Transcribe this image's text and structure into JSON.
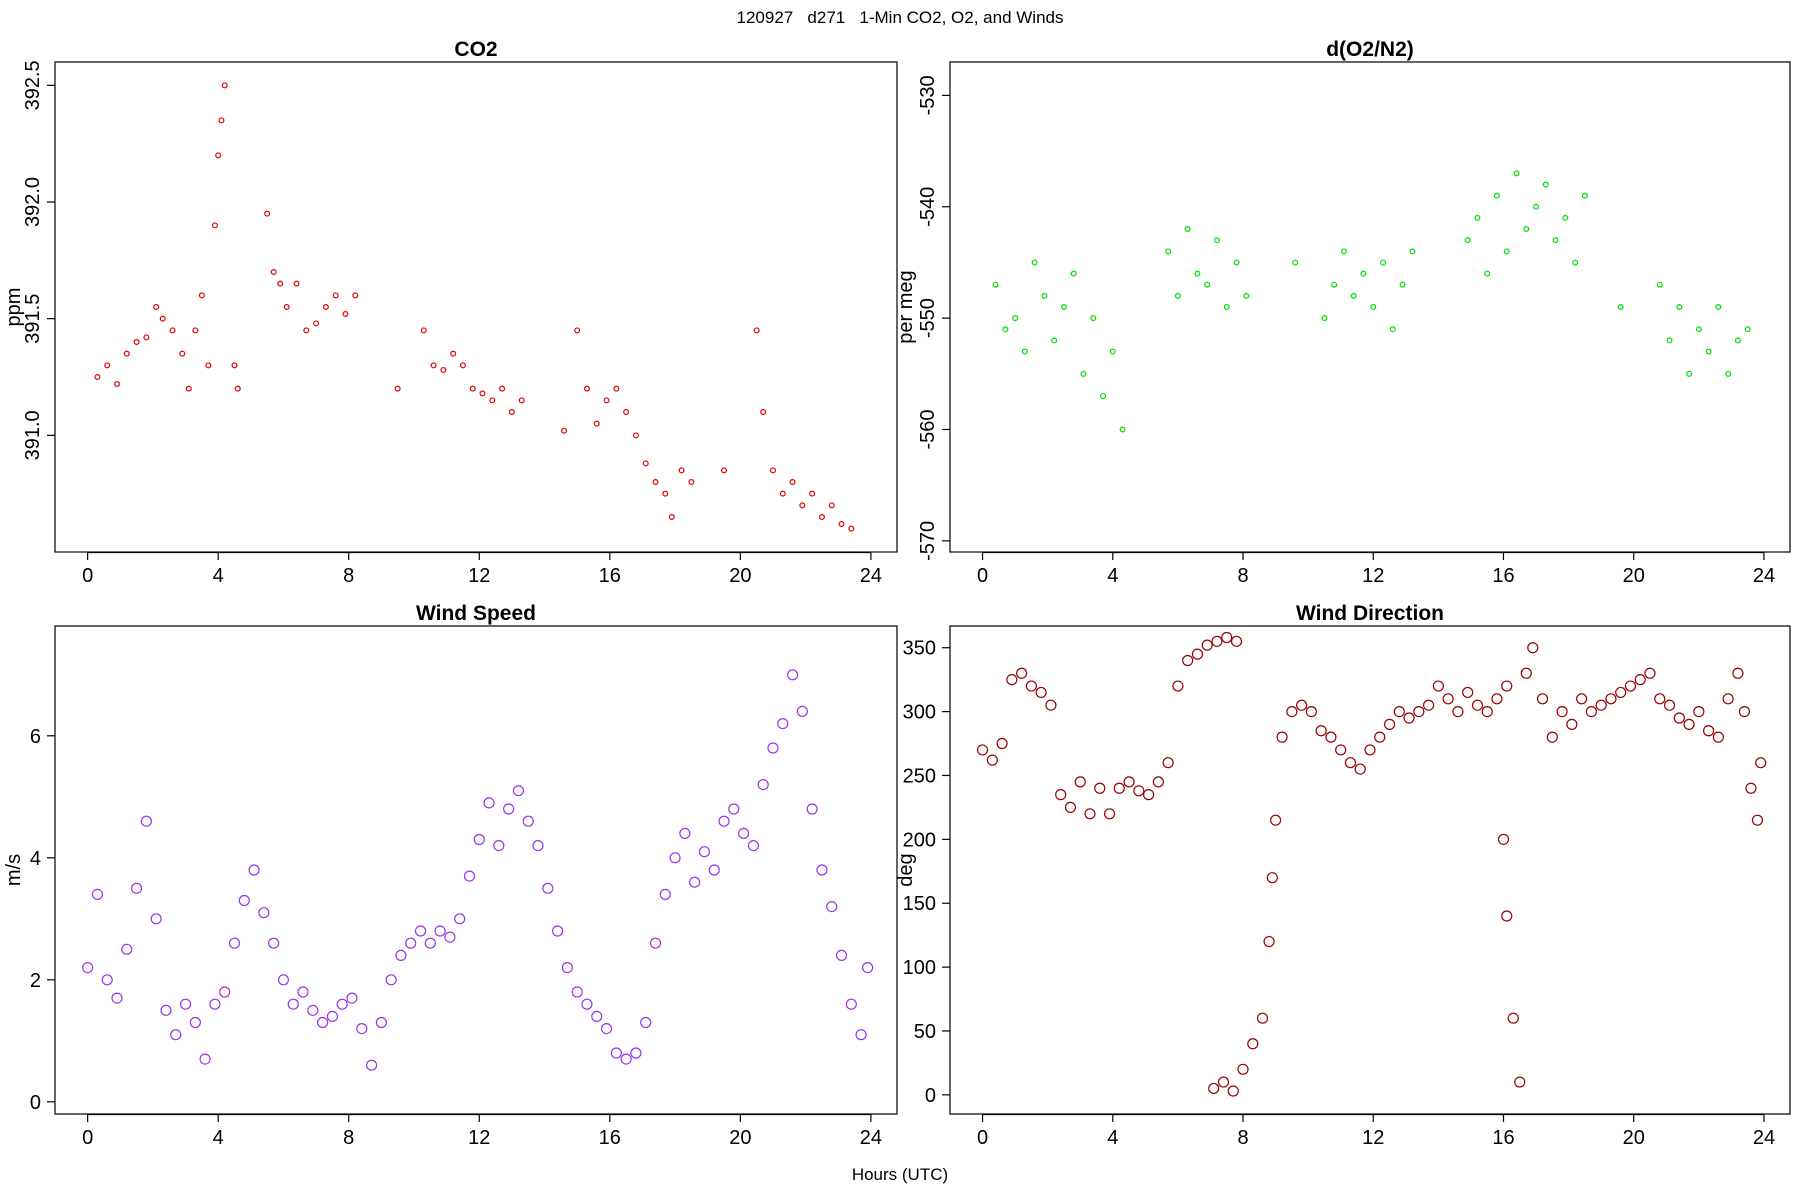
{
  "page": {
    "supertitle": "120927   d271   1-Min CO2, O2, and Winds",
    "xlabel": "Hours (UTC)"
  },
  "chart_data": [
    {
      "id": "co2",
      "type": "scatter",
      "title": "CO2",
      "xlabel": "",
      "ylabel": "ppm",
      "xlim": [
        0,
        24
      ],
      "ylim": [
        390.5,
        392.6
      ],
      "xticks": [
        "0",
        "4",
        "8",
        "12",
        "16",
        "20",
        "24"
      ],
      "yticks": [
        "391.0",
        "391.5",
        "392.0",
        "392.5"
      ],
      "color": "#dd0000",
      "marker_size": "small",
      "x": [
        0.3,
        0.6,
        0.9,
        1.2,
        1.5,
        1.8,
        2.1,
        2.3,
        2.6,
        2.9,
        3.1,
        3.3,
        3.5,
        3.7,
        3.9,
        4.0,
        4.1,
        4.2,
        4.5,
        4.6,
        5.5,
        5.7,
        5.9,
        6.1,
        6.4,
        6.7,
        7.0,
        7.3,
        7.6,
        7.9,
        8.2,
        9.5,
        10.3,
        10.6,
        10.9,
        11.2,
        11.5,
        11.8,
        12.1,
        12.4,
        12.7,
        13.0,
        13.3,
        14.6,
        15.0,
        15.3,
        15.6,
        15.9,
        16.2,
        16.5,
        16.8,
        17.1,
        17.4,
        17.7,
        17.9,
        18.2,
        18.5,
        19.5,
        20.5,
        20.7,
        21.0,
        21.3,
        21.6,
        21.9,
        22.2,
        22.5,
        22.8,
        23.1,
        23.4
      ],
      "y": [
        391.25,
        391.3,
        391.22,
        391.35,
        391.4,
        391.42,
        391.55,
        391.5,
        391.45,
        391.35,
        391.2,
        391.45,
        391.6,
        391.3,
        391.9,
        392.2,
        392.35,
        392.5,
        391.3,
        391.2,
        391.95,
        391.7,
        391.65,
        391.55,
        391.65,
        391.45,
        391.48,
        391.55,
        391.6,
        391.52,
        391.6,
        391.2,
        391.45,
        391.3,
        391.28,
        391.35,
        391.3,
        391.2,
        391.18,
        391.15,
        391.2,
        391.1,
        391.15,
        391.02,
        391.45,
        391.2,
        391.05,
        391.15,
        391.2,
        391.1,
        391.0,
        390.88,
        390.8,
        390.75,
        390.65,
        390.85,
        390.8,
        390.85,
        391.45,
        391.1,
        390.85,
        390.75,
        390.8,
        390.7,
        390.75,
        390.65,
        390.7,
        390.62,
        390.6
      ]
    },
    {
      "id": "o2",
      "type": "scatter",
      "title": "d(O2/N2)",
      "xlabel": "",
      "ylabel": "per meg",
      "xlim": [
        0,
        24
      ],
      "ylim": [
        -571,
        -527
      ],
      "xticks": [
        "0",
        "4",
        "8",
        "12",
        "16",
        "20",
        "24"
      ],
      "yticks": [
        "-530",
        "-540",
        "-550",
        "-560",
        "-570"
      ],
      "color": "#00dd00",
      "marker_size": "small",
      "x": [
        0.4,
        0.7,
        1.0,
        1.3,
        1.6,
        1.9,
        2.2,
        2.5,
        2.8,
        3.1,
        3.4,
        3.7,
        4.0,
        4.3,
        5.7,
        6.0,
        6.3,
        6.6,
        6.9,
        7.2,
        7.5,
        7.8,
        8.1,
        9.6,
        10.5,
        10.8,
        11.1,
        11.4,
        11.7,
        12.0,
        12.3,
        12.6,
        12.9,
        13.2,
        14.9,
        15.2,
        15.5,
        15.8,
        16.1,
        16.4,
        16.7,
        17.0,
        17.3,
        17.6,
        17.9,
        18.2,
        18.5,
        19.6,
        20.8,
        21.1,
        21.4,
        21.7,
        22.0,
        22.3,
        22.6,
        22.9,
        23.2,
        23.5
      ],
      "y": [
        -547,
        -551,
        -550,
        -553,
        -545,
        -548,
        -552,
        -549,
        -546,
        -555,
        -550,
        -557,
        -553,
        -560,
        -544,
        -548,
        -542,
        -546,
        -547,
        -543,
        -549,
        -545,
        -548,
        -545,
        -550,
        -547,
        -544,
        -548,
        -546,
        -549,
        -545,
        -551,
        -547,
        -544,
        -543,
        -541,
        -546,
        -539,
        -544,
        -537,
        -542,
        -540,
        -538,
        -543,
        -541,
        -545,
        -539,
        -549,
        -547,
        -552,
        -549,
        -555,
        -551,
        -553,
        -549,
        -555,
        -552,
        -551
      ]
    },
    {
      "id": "wind_speed",
      "type": "scatter",
      "title": "Wind Speed",
      "xlabel": "",
      "ylabel": "m/s",
      "xlim": [
        0,
        24
      ],
      "ylim": [
        -0.2,
        7.8
      ],
      "xticks": [
        "0",
        "4",
        "8",
        "12",
        "16",
        "20",
        "24"
      ],
      "yticks": [
        "0",
        "2",
        "4",
        "6"
      ],
      "color": "#9933ee",
      "marker_size": "large",
      "x": [
        0.0,
        0.3,
        0.6,
        0.9,
        1.2,
        1.5,
        1.8,
        2.1,
        2.4,
        2.7,
        3.0,
        3.3,
        3.6,
        3.9,
        4.2,
        4.5,
        4.8,
        5.1,
        5.4,
        5.7,
        6.0,
        6.3,
        6.6,
        6.9,
        7.2,
        7.5,
        7.8,
        8.1,
        8.4,
        8.7,
        9.0,
        9.3,
        9.6,
        9.9,
        10.2,
        10.5,
        10.8,
        11.1,
        11.4,
        11.7,
        12.0,
        12.3,
        12.6,
        12.9,
        13.2,
        13.5,
        13.8,
        14.1,
        14.4,
        14.7,
        15.0,
        15.3,
        15.6,
        15.9,
        16.2,
        16.5,
        16.8,
        17.1,
        17.4,
        17.7,
        18.0,
        18.3,
        18.6,
        18.9,
        19.2,
        19.5,
        19.8,
        20.1,
        20.4,
        20.7,
        21.0,
        21.3,
        21.6,
        21.9,
        22.2,
        22.5,
        22.8,
        23.1,
        23.4,
        23.7,
        23.9
      ],
      "y": [
        2.2,
        3.4,
        2.0,
        1.7,
        2.5,
        3.5,
        4.6,
        3.0,
        1.5,
        1.1,
        1.6,
        1.3,
        0.7,
        1.6,
        1.8,
        2.6,
        3.3,
        3.8,
        3.1,
        2.6,
        2.0,
        1.6,
        1.8,
        1.5,
        1.3,
        1.4,
        1.6,
        1.7,
        1.2,
        0.6,
        1.3,
        2.0,
        2.4,
        2.6,
        2.8,
        2.6,
        2.8,
        2.7,
        3.0,
        3.7,
        4.3,
        4.9,
        4.2,
        4.8,
        5.1,
        4.6,
        4.2,
        3.5,
        2.8,
        2.2,
        1.8,
        1.6,
        1.4,
        1.2,
        0.8,
        0.7,
        0.8,
        1.3,
        2.6,
        3.4,
        4.0,
        4.4,
        3.6,
        4.1,
        3.8,
        4.6,
        4.8,
        4.4,
        4.2,
        5.2,
        5.8,
        6.2,
        7.0,
        6.4,
        4.8,
        3.8,
        3.2,
        2.4,
        1.6,
        1.1,
        2.2
      ]
    },
    {
      "id": "wind_direction",
      "type": "scatter",
      "title": "Wind Direction",
      "xlabel": "",
      "ylabel": "deg",
      "xlim": [
        0,
        24
      ],
      "ylim": [
        -15,
        367
      ],
      "xticks": [
        "0",
        "4",
        "8",
        "12",
        "16",
        "20",
        "24"
      ],
      "yticks": [
        "0",
        "50",
        "100",
        "150",
        "200",
        "250",
        "300",
        "350"
      ],
      "color": "#990000",
      "marker_size": "large",
      "x": [
        0.0,
        0.3,
        0.6,
        0.9,
        1.2,
        1.5,
        1.8,
        2.1,
        2.4,
        2.7,
        3.0,
        3.3,
        3.6,
        3.9,
        4.2,
        4.5,
        4.8,
        5.1,
        5.4,
        5.7,
        6.0,
        6.3,
        6.6,
        6.9,
        7.2,
        7.5,
        7.8,
        7.1,
        7.4,
        7.7,
        8.0,
        8.3,
        8.6,
        8.8,
        8.9,
        9.0,
        9.2,
        9.5,
        9.8,
        10.1,
        10.4,
        10.7,
        11.0,
        11.3,
        11.6,
        11.9,
        12.2,
        12.5,
        12.8,
        13.1,
        13.4,
        13.7,
        14.0,
        14.3,
        14.6,
        14.9,
        15.2,
        15.5,
        15.8,
        16.1,
        16.0,
        16.1,
        16.3,
        16.5,
        16.7,
        16.9,
        17.2,
        17.5,
        17.8,
        18.1,
        18.4,
        18.7,
        19.0,
        19.3,
        19.6,
        19.9,
        20.2,
        20.5,
        20.8,
        21.1,
        21.4,
        21.7,
        22.0,
        22.3,
        22.6,
        22.9,
        23.2,
        23.4,
        23.6,
        23.8,
        23.9
      ],
      "y": [
        270,
        262,
        275,
        325,
        330,
        320,
        315,
        305,
        235,
        225,
        245,
        220,
        240,
        220,
        240,
        245,
        238,
        235,
        245,
        260,
        320,
        340,
        345,
        352,
        355,
        358,
        355,
        5,
        10,
        3,
        20,
        40,
        60,
        120,
        170,
        215,
        280,
        300,
        305,
        300,
        285,
        280,
        270,
        260,
        255,
        270,
        280,
        290,
        300,
        295,
        300,
        305,
        320,
        310,
        300,
        315,
        305,
        300,
        310,
        320,
        200,
        140,
        60,
        10,
        330,
        350,
        310,
        280,
        300,
        290,
        310,
        300,
        305,
        310,
        315,
        320,
        325,
        330,
        310,
        305,
        295,
        290,
        300,
        285,
        280,
        310,
        330,
        300,
        240,
        215,
        260
      ]
    }
  ]
}
